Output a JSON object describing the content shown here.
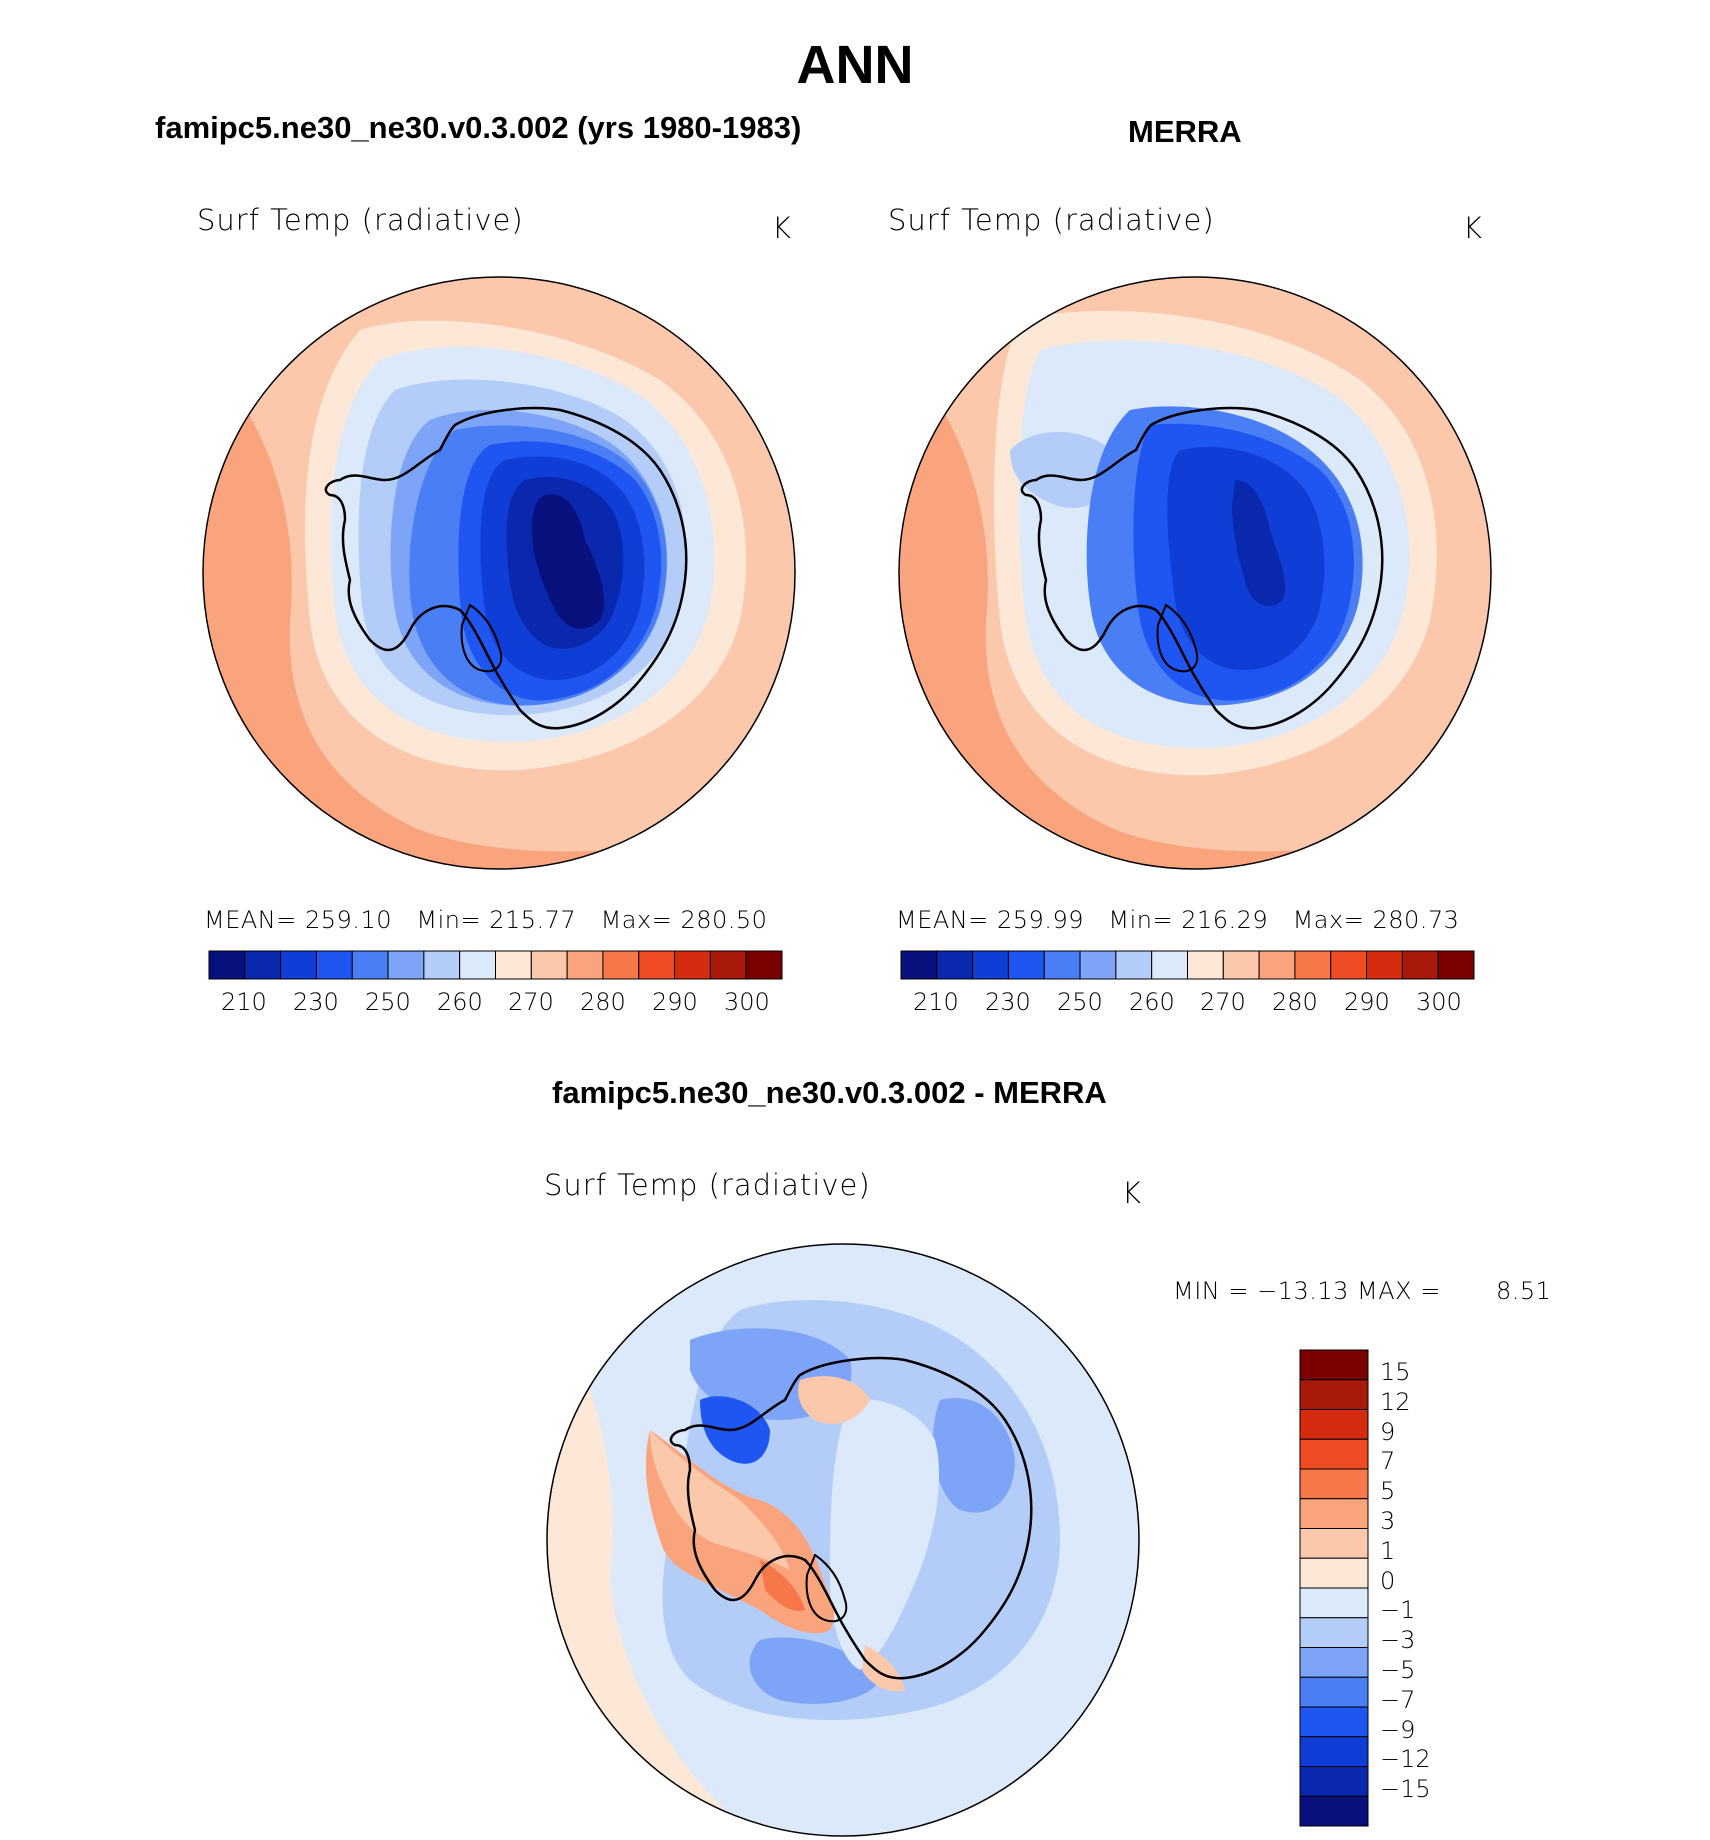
{
  "title": "ANN",
  "colors": {
    "seq": [
      "#08107e",
      "#0a28ad",
      "#0e3ed6",
      "#1f55f0",
      "#4a7ef5",
      "#7da4f7",
      "#b3cdf8",
      "#dce9fb",
      "#fde7d6",
      "#fcc8ac",
      "#faa47e",
      "#f6774a",
      "#f04b24",
      "#d52c10",
      "#a9190a",
      "#7b0000"
    ],
    "div": [
      "#08107e",
      "#0a28ad",
      "#0e3ed6",
      "#1f55f0",
      "#4a7ef5",
      "#7da4f7",
      "#b3cdf8",
      "#dce9fb",
      "#fde7d6",
      "#fcc8ac",
      "#faa47e",
      "#f6774a",
      "#f04b24",
      "#d52c10",
      "#a9190a",
      "#7b0000"
    ]
  },
  "panels": {
    "model": {
      "header": "famipc5.ne30_ne30.v0.3.002 (yrs 1980-1983)",
      "variable": "Surf Temp (radiative)",
      "units": "K",
      "mean_label": "MEAN=",
      "mean_value": "259.10",
      "min_label": "Min=",
      "min_value": "215.77",
      "max_label": "Max=",
      "max_value": "280.50"
    },
    "obs": {
      "header": "MERRA",
      "variable": "Surf Temp (radiative)",
      "units": "K",
      "mean_label": "MEAN=",
      "mean_value": "259.99",
      "min_label": "Min=",
      "min_value": "216.29",
      "max_label": "Max=",
      "max_value": "280.73"
    },
    "diff": {
      "header": "famipc5.ne30_ne30.v0.3.002 - MERRA",
      "variable": "Surf Temp (radiative)",
      "units": "K",
      "range_text": "MIN = −13.13 MAX =",
      "max_value": "8.51"
    }
  },
  "colorbar_seq_ticks": [
    "210",
    "230",
    "250",
    "260",
    "270",
    "280",
    "290",
    "300"
  ],
  "colorbar_div_ticks": [
    "15",
    "12",
    "9",
    "7",
    "5",
    "3",
    "1",
    "0",
    "−1",
    "−3",
    "−5",
    "−7",
    "−9",
    "−12",
    "−15"
  ]
}
